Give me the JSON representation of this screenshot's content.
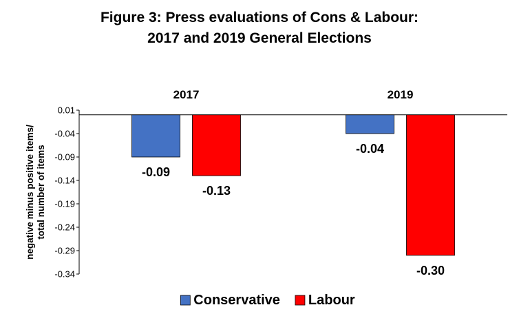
{
  "chart_data": {
    "type": "bar",
    "title": "Figure 3: Press evaluations of Cons & Labour:",
    "subtitle": "2017 and 2019 General Elections",
    "categories": [
      "2017",
      "2019"
    ],
    "category_position": "top",
    "ylabel": "negative minus positive items/ total number of items",
    "xlabel": "",
    "ylim": [
      -0.34,
      0.01
    ],
    "yticks": [
      "0.01",
      "-0.04",
      "-0.09",
      "-0.14",
      "-0.19",
      "-0.24",
      "-0.29",
      "-0.34"
    ],
    "series": [
      {
        "name": "Conservative",
        "color": "#4472C4",
        "values": [
          -0.09,
          -0.04
        ],
        "labels": [
          "-0.09",
          "-0.04"
        ]
      },
      {
        "name": "Labour",
        "color": "#FF0000",
        "values": [
          -0.13,
          -0.3
        ],
        "labels": [
          "-0.13",
          "-0.30"
        ]
      }
    ],
    "legend_position": "bottom",
    "grid": false
  }
}
